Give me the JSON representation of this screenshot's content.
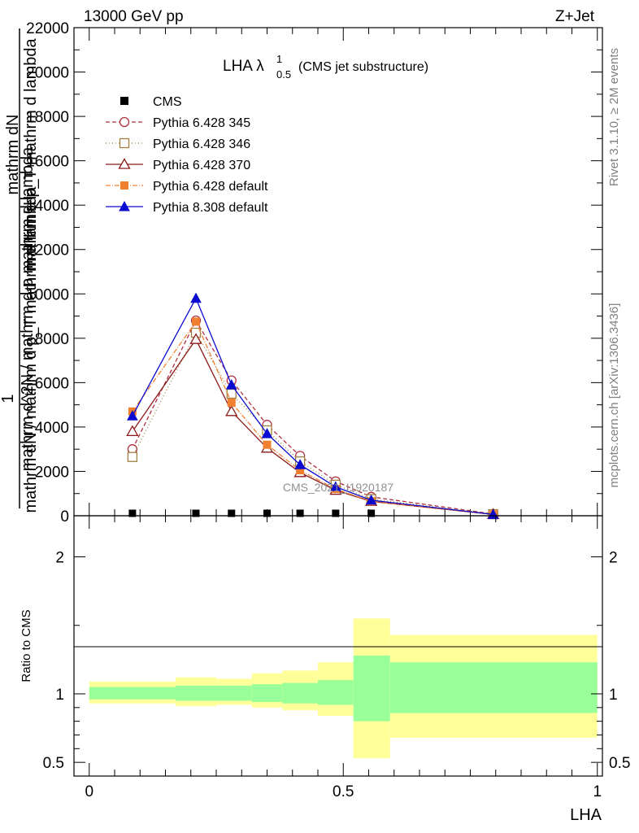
{
  "header": {
    "energy": "13000 GeV pp",
    "process": "Z+Jet"
  },
  "side": {
    "rivet": "Rivet 3.1.10, ≥ 2M events",
    "mcplots": "mcplots.cern.ch [arXiv:1306.3436]"
  },
  "watermark": "CMS_2021_I1920187",
  "chart_data": {
    "type": "line",
    "title_main": "LHA λ",
    "title_sup": "1",
    "title_sub": "0.5",
    "title_note": "(CMS jet substructure)",
    "ylabel_numerator": "1",
    "ylabel_garbled": [
      "mathrm dN",
      "mathrm d p_T mathrm d lambda",
      "mathrm d^2N / mathrm d p mathrm d lambda"
    ],
    "ylabel": "mathrm dN / mathrm d p_T mathrm d lambda",
    "xlabel": "LHA",
    "ratio_ylabel": "Ratio to CMS",
    "xlim": [
      -0.03,
      1.01
    ],
    "ylim": [
      0,
      22000
    ],
    "yticks": [
      0,
      2000,
      4000,
      6000,
      8000,
      10000,
      12000,
      14000,
      16000,
      18000,
      20000,
      22000
    ],
    "ytick_labels": [
      "0",
      "2000",
      "4000",
      "6000",
      "8000",
      "10000",
      "12000",
      "14000",
      "16000",
      "18000",
      "20000",
      "22000"
    ],
    "xticks": [
      0,
      0.5,
      1
    ],
    "xtick_labels": [
      "0",
      "0.5",
      "1"
    ],
    "ratio_ylim": [
      0.4,
      2.3
    ],
    "ratio_yticks": [
      0.5,
      1,
      2
    ],
    "ratio_ytick_labels": [
      "0.5",
      "1",
      "2"
    ],
    "data_series": {
      "name": "CMS",
      "x": [
        0.085,
        0.21,
        0.28,
        0.35,
        0.415,
        0.485,
        0.555
      ],
      "y": [
        30,
        30,
        30,
        30,
        30,
        30,
        30
      ]
    },
    "series": [
      {
        "name": "Pythia 6.428 345",
        "color": "#b03040",
        "marker": "circle-open",
        "dash": "5,3",
        "x": [
          0.085,
          0.21,
          0.28,
          0.35,
          0.415,
          0.485,
          0.555,
          0.795
        ],
        "y": [
          3000,
          8800,
          6100,
          4100,
          2700,
          1550,
          850,
          80
        ]
      },
      {
        "name": "Pythia 6.428 346",
        "color": "#a08040",
        "marker": "square-open",
        "dash": "1,3",
        "x": [
          0.085,
          0.21,
          0.28,
          0.35,
          0.415,
          0.485,
          0.555,
          0.795
        ],
        "y": [
          2650,
          8250,
          5500,
          3850,
          2450,
          1400,
          750,
          70
        ]
      },
      {
        "name": "Pythia 6.428 370",
        "color": "#8b1a1a",
        "marker": "triangle-open",
        "dash": "",
        "x": [
          0.085,
          0.21,
          0.28,
          0.35,
          0.415,
          0.485,
          0.555,
          0.795
        ],
        "y": [
          3800,
          7950,
          4700,
          3050,
          1950,
          1150,
          650,
          60
        ]
      },
      {
        "name": "Pythia 6.428 default",
        "color": "#f08030",
        "marker": "square-filled",
        "dash": "6,2,1,2",
        "x": [
          0.085,
          0.21,
          0.28,
          0.35,
          0.415,
          0.485,
          0.555,
          0.795
        ],
        "y": [
          4700,
          8750,
          5100,
          3200,
          2050,
          1200,
          650,
          60
        ]
      },
      {
        "name": "Pythia 8.308 default",
        "color": "#0a0ad0",
        "marker": "triangle-filled",
        "dash": "",
        "x": [
          0.085,
          0.21,
          0.28,
          0.35,
          0.415,
          0.485,
          0.555,
          0.795
        ],
        "y": [
          4500,
          9800,
          5900,
          3700,
          2300,
          1300,
          700,
          60
        ]
      }
    ],
    "ratio_bands": [
      {
        "x0": 0.0,
        "x1": 0.17,
        "inner": [
          0.96,
          1.05
        ],
        "outer": [
          0.93,
          1.09
        ]
      },
      {
        "x0": 0.17,
        "x1": 0.25,
        "inner": [
          0.95,
          1.06
        ],
        "outer": [
          0.91,
          1.12
        ]
      },
      {
        "x0": 0.25,
        "x1": 0.32,
        "inner": [
          0.95,
          1.06
        ],
        "outer": [
          0.92,
          1.11
        ]
      },
      {
        "x0": 0.32,
        "x1": 0.38,
        "inner": [
          0.94,
          1.07
        ],
        "outer": [
          0.9,
          1.15
        ]
      },
      {
        "x0": 0.38,
        "x1": 0.45,
        "inner": [
          0.93,
          1.08
        ],
        "outer": [
          0.88,
          1.17
        ]
      },
      {
        "x0": 0.45,
        "x1": 0.52,
        "inner": [
          0.92,
          1.1
        ],
        "outer": [
          0.84,
          1.23
        ]
      },
      {
        "x0": 0.52,
        "x1": 0.592,
        "inner": [
          0.8,
          1.28
        ],
        "outer": [
          0.53,
          1.55
        ]
      },
      {
        "x0": 0.592,
        "x1": 1.0,
        "inner": [
          0.86,
          1.23
        ],
        "outer": [
          0.68,
          1.43
        ]
      }
    ],
    "grid": false,
    "legend_position": "top-left",
    "colors": {
      "band_inner": "#99ff99",
      "band_outer": "#ffff99",
      "data": "#000000"
    }
  }
}
